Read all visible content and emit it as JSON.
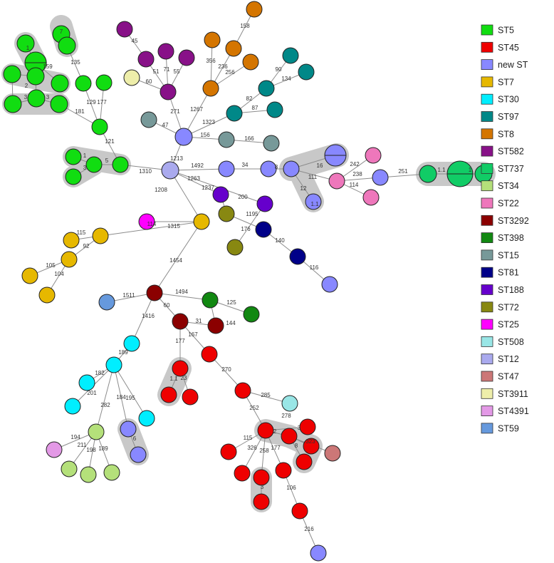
{
  "diagram": {
    "type": "minimum-spanning-tree",
    "legend": [
      {
        "name": "ST5",
        "color": "#11dd11"
      },
      {
        "name": "ST45",
        "color": "#ee0000"
      },
      {
        "name": "new ST",
        "color": "#8888ff"
      },
      {
        "name": "ST7",
        "color": "#e6b800"
      },
      {
        "name": "ST30",
        "color": "#00eeff"
      },
      {
        "name": "ST97",
        "color": "#008888"
      },
      {
        "name": "ST8",
        "color": "#d47500"
      },
      {
        "name": "ST582",
        "color": "#881188"
      },
      {
        "name": "ST737",
        "color": "#11cc66"
      },
      {
        "name": "ST34",
        "color": "#b4e07a"
      },
      {
        "name": "ST22",
        "color": "#ee77bb"
      },
      {
        "name": "ST3292",
        "color": "#8b0000"
      },
      {
        "name": "ST398",
        "color": "#118811"
      },
      {
        "name": "ST15",
        "color": "#779999"
      },
      {
        "name": "ST81",
        "color": "#000088"
      },
      {
        "name": "ST188",
        "color": "#6600cc"
      },
      {
        "name": "ST72",
        "color": "#888811"
      },
      {
        "name": "ST25",
        "color": "#ff00ff"
      },
      {
        "name": "ST508",
        "color": "#99e6e6"
      },
      {
        "name": "ST12",
        "color": "#aaaaee"
      },
      {
        "name": "ST47",
        "color": "#cc7777"
      },
      {
        "name": "ST3911",
        "color": "#eeeeaa"
      },
      {
        "name": "ST4391",
        "color": "#e399e6"
      },
      {
        "name": "ST59",
        "color": "#6699dd"
      }
    ],
    "edge_labels": [
      "7",
      "1",
      "135",
      "159",
      "2",
      "3",
      "3",
      "181",
      "129",
      "177",
      "121",
      "1",
      "5",
      "3",
      "1310",
      "45",
      "51",
      "71",
      "55",
      "60",
      "271",
      "47",
      "156",
      "166",
      "1213",
      "1267",
      "356",
      "236",
      "256",
      "158",
      "1323",
      "87",
      "82",
      "134",
      "90",
      "1492",
      "34",
      "8",
      "16",
      "111",
      "12",
      "1.1",
      "242",
      "238",
      "114",
      "251",
      "1.1",
      "1",
      "1263",
      "1237",
      "200",
      "1195",
      "176",
      "140",
      "116",
      "1208",
      "1315",
      "114",
      "115",
      "92",
      "105",
      "104",
      "1454",
      "1511",
      "1494",
      "125",
      "144",
      "60",
      "31",
      "1416",
      "167",
      "177",
      "1.1",
      "23",
      "270",
      "285",
      "189",
      "182",
      "201",
      "195",
      "282",
      "184",
      "6",
      "252",
      "278",
      "2",
      "3",
      "323",
      "8",
      "115",
      "326",
      "258",
      "177",
      "3",
      "106",
      "216",
      "194",
      "211",
      "198",
      "189"
    ]
  }
}
